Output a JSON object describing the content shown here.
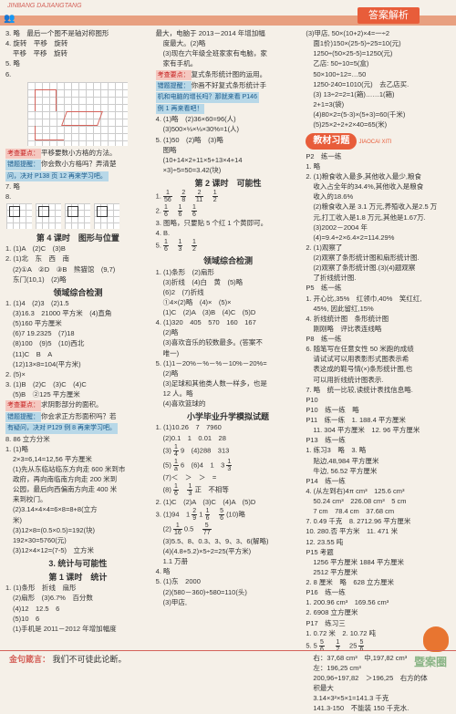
{
  "header": {
    "brand": "JINBANG DAJIANGTANG",
    "title": "答案解析"
  },
  "footer": {
    "label": "金句箴言：",
    "text": "我们不可徒此论断。"
  },
  "watermark": "暨案圈",
  "col1": {
    "l3": "3. 略　最后一个图不是轴对称图形",
    "l4a": "4. 旋转　平移　旋转",
    "l4b": "平移　平移　旋转",
    "l5": "5. 略",
    "l6": "6.",
    "tag1a": "考查要点：",
    "tag1b": "平移要数小方格的方法。",
    "tag2a": "错题提醒：",
    "tag2b": "你会数小方格吗？弄清楚",
    "tag2c": "问，决对 P138 页 12 再来学习吧。",
    "l7": "7. 略",
    "l8": "8.",
    "s1": "第 4 课时　图形与位置",
    "a1": "1. (1)A　(2)C　(3)B",
    "a2": "2. (1)北　东　西　南",
    "a2b": "(2)①A　②D　③B　熊猫馆　(9,7)",
    "a2c": "东门(10,1)　(2)略",
    "s2": "领域综合检测",
    "b1": "1. (1)4　(2)3　(2)1.5",
    "b1b": "(3)16.3　21000 平方米　(4)直角",
    "b1c": "(5)160 平方厘米",
    "b1d": "(6)7 19.2325　(7)18",
    "b1e": "(8)100　(9)5　(10)西北",
    "b1f": "(11)C　B　A",
    "b1g": "(12)13×8=104(平方米)",
    "b2": "2. (5)×",
    "b3": "3. (1)B　(2)C　(3)C　(4)C",
    "b3b": "(5)B　②125 平方厘米",
    "tag3a": "考查要点：",
    "tag3b": "求阴影部分的面积。",
    "tag4a": "错题提醒：",
    "tag4b": "你会求正方形面积吗？若",
    "tag4c": "有疑问，决对 P129 例 8 再来学习吧。",
    "c1": "8. 86 立方分米",
    "c2": "1. (1)略",
    "c2b": "2×3=6,14=12,56 平方厘米",
    "c2c": "(1)先从东临站临东方向走 600 米到市",
    "c2d": "政府，再向南临南方向走 200 米到",
    "c2e": "公园，最后向西偏南方向走 400 米",
    "c2f": "来到校门。",
    "c2g": "(2)3.14×4×4=6×8=8+8(立方",
    "c2h": "米)",
    "c2i": "(3)12×8=(0.5×0.5)=192(块)",
    "c2j": "192×30=5760(元)",
    "c2k": "(3)12×4×12=(7-5)　立方米",
    "s3": "3. 统计与可能性",
    "s3b": "第 1 课时　统计",
    "d1": "1. (1)条形　折线　扇形",
    "d1b": "(2)扇形　(3)6.7%　百分数",
    "d1c": "(4)12　12.5　6",
    "d1d": "(5)10　6",
    "d2": "(1)手机是 2011－2012 年增加幅度",
    "col2start": "最大，电脑于 2013－2014 年增加幅"
  },
  "col2": {
    "l1": "最大，电脑于 2013－2014 年增加幅",
    "l1b": "度最大。(2)略",
    "l1c": "(3)现在六年级全班家家有电脑，家",
    "l1d": "家有手机。",
    "tag1a": "考查要点：",
    "tag1b": "复式条形统计图的运用。",
    "tag2a": "错题提醒：",
    "tag2b": "你画不好复式条形统计手",
    "tag2c": "机和电脑的增长吗？那就来看 P146",
    "tag2d": "例 1 再来看吧！",
    "a4": "4. (1)略　(2)36×60=96(人)",
    "a4b": "(3)500×⅓×⅓×30%=1(人)",
    "a5": "5. (1)50　(2)略　(3)略",
    "a6": "图略",
    "a6b": "(10+14×2+11×5+13×4+14",
    "a6c": "×3)÷5=50=3.42(块)",
    "s1": "第 2 课时　可能性",
    "b1a": "1. ",
    "b1_f1n": "1",
    "b1_f1d": "56",
    "b1_f2n": "2",
    "b1_f2d": "8",
    "b1_f3n": "2",
    "b1_f3d": "11",
    "b1_f4n": "1",
    "b1_f4d": "2",
    "b2a": "2. ",
    "b2_f1n": "1",
    "b2_f1d": "6",
    "b2_f2n": "1",
    "b2_f2d": "6",
    "b2_f3n": "1",
    "b2_f3d": "6",
    "b3": "3. 图略，只要贴 5 个红 1 个黄即可。",
    "b4": "4. B.",
    "b5": "5. ",
    "b5_f1n": "1",
    "b5_f1d": "6",
    "b5_f2n": "1",
    "b5_f2d": "3",
    "b5_f3n": "1",
    "b5_f3d": "2",
    "s2": "领域综合检测",
    "c1": "1. (1)条形　(2)扇形",
    "c1b": "(3)折线　(4)白　黄　(5)略",
    "c1c": "(6)2　(7)折线",
    "c1d": "①4×(2)略　(4)×　(5)×",
    "c1e": "(1)C　(2)A　(3)B　(4)C　(5)D",
    "c4": "4. (1)320　405　570　160　167",
    "c4b": "(2)略",
    "c4c": "(3)喜欢音乐的较数最多。(答案不",
    "c4d": "唯一)",
    "c5": "5. (1)1－20%－%－%－10%－20%=",
    "c5b": "(2)略",
    "c5c": "(3)足球和其他类人数一样多，也是",
    "c5d": "12 人。略",
    "c5e": "(4)喜欢篮球的",
    "s3": "小学毕业升学模拟试题",
    "d1": "1. (1)10.26　7　7960",
    "d1b": "(2)0.1　1　0.01　28",
    "d1c": "(3)",
    "d1_f1n": "1",
    "d1_f1d": "4",
    "d1d": "9　(4)288　313",
    "d1e": "(5)",
    "d1_f2n": "1",
    "d1_f2d": "a",
    "d1f": "6　(6)4　1　3",
    "d1_f3n": "1",
    "d1_f3d": "3",
    "d1g": "(7)＜　＞　＞　=",
    "d1h": "(8)",
    "d1_f4n": "1",
    "d1_f4d": "6",
    "d1_f5n": "1",
    "d1_f5d": "3",
    "d1i": "正　不相等",
    "d2": "2. (1)C　(2)A　(3)C　(4)A　(5)D",
    "d3": "3. (1)94　1",
    "d3_f1n": "2",
    "d3_f1d": "9",
    "d3b": " 1",
    "d3_f2n": "1",
    "d3_f2d": "6",
    "d3_f3n": "5",
    "d3_f3d": "6",
    "d3c": " (10)略",
    "d3d": "(2)",
    "d3_f4n": "1",
    "d3_f4d": "16",
    "d3e": " 0.5　",
    "d3_f5n": "5",
    "d3_f5d": "77",
    "d3f": "(3)5.5、8、0.3、3、9、3、6(解略)",
    "d3g": "(4)(4.8+5.2)×5÷2=25(平方米)",
    "d3h": "1.1 万册",
    "d4": "4. 略",
    "d5": "5. (1)东　2000",
    "d5b": "(2)(580－360)÷580=110(头)",
    "d5c": "(3)甲店,"
  },
  "col3": {
    "l1": "(3)甲店, 50×(10+2)×4=一÷2",
    "l1b": "面1价)150×(25-5)÷25=10(元)",
    "l1c": "1250÷(50×25-5)=1250(元)",
    "l1d": "乙店: 50÷10=5(盒)",
    "l1e": "50×100÷12=…50",
    "l1f": "1250-240=1010(元)　去乙店买.",
    "l1g": "(3) 13÷2=2=1(箱)……1(箱)",
    "l1h": "2+1=3(袋)",
    "l1i": "(4)80×2=(5-3)×(5+3)=60(千米)",
    "l1j": "(5)25×2÷2+2×40=65(米)",
    "s1wrap": " ",
    "s1": "教材习题",
    "s1py": "JIAOCAI XITI",
    "p2": "P2　练一练",
    "a1": "1. 略",
    "a2": "2. (1)粮食收入最多,其他收入最少,粮食",
    "a2b": "收入占全年的34.4%,其他收入是粮食",
    "a2c": "收入的18.6%",
    "a2d": "(2)粮食收入是 3.1 万元,养殖收入是2.5 万",
    "a2e": "元,打工收入是1.8 万元,其他是1.67万.",
    "a2f": "(3)2002－2004 年",
    "a2g": "(4)=9.4÷2×6.4×2=114.29%",
    "a2h": "2. (1)观察了",
    "a2i": "(2)观察了条形统计图和扇形统计图.",
    "a2j": "(2)观察了条形统计图.(3)(4)题观察",
    "a2k": "了折线统计图.",
    "p5": "P5　练一练",
    "b1": "1. 开心比,35%　红领巾,40%　笑红红,",
    "b1b": "45%, 因此留红,15%",
    "b4": "4. 折线统计图　条形统计图",
    "b4b": "刚刚略　评比表连线略",
    "p8": "P8　练一练",
    "b6": "6. 随笔写在任意女性 50 米跑的成绩",
    "b6b": "请试试可以用表影形式图表示希",
    "b6c": "表这成的鞋号情(×)条形统计图,也",
    "b6d": "可以用折线统计图表示.",
    "b7": "7. 略　统一比较,读统计表找信息略.",
    "p10h": "P10",
    "p10": "P10　练一练　略",
    "p11": "P11　练一练　1. 188.4 平方厘米",
    "b11": "11. 304 平方厘米　12. 96 平方厘米",
    "p13": "P13　练一练",
    "c1": "1. 练习3　略　3. 略",
    "c2": "贴边,48,984 平方厘米",
    "c2b": "牛边, 56.52 平方厘米",
    "p14": "P14　练一练",
    "c4": "4. (从左到右)4π cm³　125.6 cm³",
    "c4b": "50.24 cm³　226.08 cm³　5 cm",
    "c4c": "7 cm　78.4 cm　37.68 cm",
    "c7": "7. 0.49 千克　8. 2712.96 平方厘米",
    "c10": "10. 280.否 平方米　11. 471 米",
    "c12": "12. 23.55 吨",
    "p15": "P15 考题",
    "d1a": "1256 平方厘米 1884 平方厘米",
    "d1b": "2512 平方厘米",
    "d2": "2. 8 厘米　略　628 立方厘米",
    "p16": "P16　练一练",
    "e1": "1. 200.96 cm³　169.56 cm³",
    "e2": "2. 6908 立方厘米",
    "p17": "P17　练习三",
    "f1": "1. 0.72 米　2. 10.72 吨",
    "f5": "5. 5",
    "f5_f1n": "5",
    "f5_f1d": "6",
    "f5b": "　",
    "f5_f2n": "1",
    "f5_f2d": "2",
    "f5c": "　25",
    "f5_f3n": "5",
    "f5_f3d": "6",
    "g1": "右：37,68 cm³　中,197,82 cm³",
    "g2": "左：196,25 cm³",
    "g3": "200,96÷197,82　＞196,25　右方的体",
    "g4": "积最大",
    "h1": "3.14×3²×5×1=141.3 千克",
    "h2": "141.3-150　不能装 150 千克水."
  }
}
